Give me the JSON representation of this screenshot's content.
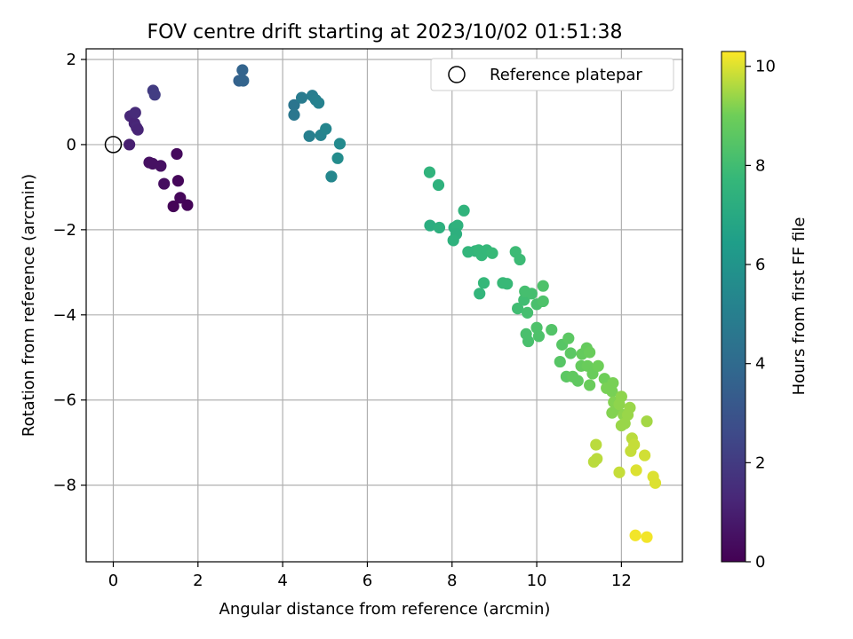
{
  "chart_data": {
    "type": "scatter",
    "title": "FOV centre drift starting at 2023/10/02 01:51:38",
    "xlabel": "Angular distance from reference (arcmin)",
    "ylabel": "Rotation from reference (arcmin)",
    "xlim": [
      -0.64,
      13.44
    ],
    "ylim": [
      -9.8,
      2.25
    ],
    "xticks": [
      0,
      2,
      4,
      6,
      8,
      10,
      12
    ],
    "yticks": [
      2,
      0,
      -2,
      -4,
      -6,
      -8
    ],
    "grid": true,
    "legend": {
      "placement": "upper right",
      "entries": [
        "Reference platepar"
      ]
    },
    "colorbar": {
      "label": "Hours from first FF file",
      "min": 0,
      "max": 10.3,
      "ticks": [
        0,
        2,
        4,
        6,
        8,
        10
      ],
      "colormap": "viridis"
    },
    "reference": {
      "x": 0,
      "y": 0
    },
    "points": [
      {
        "x": 0.38,
        "y": 0.0,
        "h": 1.0
      },
      {
        "x": 0.4,
        "y": 0.67,
        "h": 1.3
      },
      {
        "x": 0.5,
        "y": 0.5,
        "h": 1.2
      },
      {
        "x": 0.52,
        "y": 0.75,
        "h": 1.4
      },
      {
        "x": 0.55,
        "y": 0.4,
        "h": 1.3
      },
      {
        "x": 0.58,
        "y": 0.35,
        "h": 1.2
      },
      {
        "x": 0.94,
        "y": 1.27,
        "h": 2.0
      },
      {
        "x": 0.98,
        "y": 1.17,
        "h": 2.1
      },
      {
        "x": 0.85,
        "y": -0.42,
        "h": 0.5
      },
      {
        "x": 0.93,
        "y": -0.45,
        "h": 0.5
      },
      {
        "x": 1.12,
        "y": -0.5,
        "h": 0.5
      },
      {
        "x": 1.2,
        "y": -0.92,
        "h": 0.4
      },
      {
        "x": 1.5,
        "y": -0.22,
        "h": 0.3
      },
      {
        "x": 1.53,
        "y": -0.85,
        "h": 0.2
      },
      {
        "x": 1.58,
        "y": -1.25,
        "h": 0.2
      },
      {
        "x": 1.42,
        "y": -1.45,
        "h": 0.1
      },
      {
        "x": 1.75,
        "y": -1.42,
        "h": 0.1
      },
      {
        "x": 3.05,
        "y": 1.75,
        "h": 3.7
      },
      {
        "x": 2.97,
        "y": 1.5,
        "h": 3.6
      },
      {
        "x": 3.07,
        "y": 1.5,
        "h": 3.7
      },
      {
        "x": 4.27,
        "y": 0.93,
        "h": 4.5
      },
      {
        "x": 4.27,
        "y": 0.7,
        "h": 4.6
      },
      {
        "x": 4.45,
        "y": 1.1,
        "h": 4.8
      },
      {
        "x": 4.7,
        "y": 1.15,
        "h": 4.9
      },
      {
        "x": 4.78,
        "y": 1.05,
        "h": 5.0
      },
      {
        "x": 4.85,
        "y": 0.98,
        "h": 5.1
      },
      {
        "x": 4.63,
        "y": 0.2,
        "h": 5.0
      },
      {
        "x": 4.9,
        "y": 0.22,
        "h": 5.2
      },
      {
        "x": 5.02,
        "y": 0.37,
        "h": 5.3
      },
      {
        "x": 5.35,
        "y": 0.02,
        "h": 5.5
      },
      {
        "x": 5.3,
        "y": -0.32,
        "h": 5.6
      },
      {
        "x": 5.15,
        "y": -0.75,
        "h": 5.4
      },
      {
        "x": 7.47,
        "y": -0.65,
        "h": 7.5
      },
      {
        "x": 7.68,
        "y": -0.95,
        "h": 7.4
      },
      {
        "x": 7.48,
        "y": -1.9,
        "h": 7.2
      },
      {
        "x": 7.7,
        "y": -1.95,
        "h": 7.3
      },
      {
        "x": 8.05,
        "y": -1.95,
        "h": 7.3
      },
      {
        "x": 8.13,
        "y": -1.9,
        "h": 7.4
      },
      {
        "x": 8.28,
        "y": -1.55,
        "h": 7.5
      },
      {
        "x": 8.1,
        "y": -2.1,
        "h": 7.3
      },
      {
        "x": 8.03,
        "y": -2.25,
        "h": 7.4
      },
      {
        "x": 8.38,
        "y": -2.52,
        "h": 7.6
      },
      {
        "x": 8.55,
        "y": -2.5,
        "h": 7.6
      },
      {
        "x": 8.63,
        "y": -2.48,
        "h": 7.7
      },
      {
        "x": 8.7,
        "y": -2.6,
        "h": 7.7
      },
      {
        "x": 8.82,
        "y": -2.48,
        "h": 7.7
      },
      {
        "x": 8.95,
        "y": -2.55,
        "h": 7.8
      },
      {
        "x": 8.65,
        "y": -3.5,
        "h": 7.6
      },
      {
        "x": 8.75,
        "y": -3.25,
        "h": 7.7
      },
      {
        "x": 9.2,
        "y": -3.25,
        "h": 7.8
      },
      {
        "x": 9.3,
        "y": -3.27,
        "h": 7.8
      },
      {
        "x": 9.5,
        "y": -2.52,
        "h": 7.9
      },
      {
        "x": 9.6,
        "y": -2.7,
        "h": 7.9
      },
      {
        "x": 9.55,
        "y": -3.85,
        "h": 8.0
      },
      {
        "x": 9.7,
        "y": -3.65,
        "h": 8.0
      },
      {
        "x": 9.72,
        "y": -3.45,
        "h": 8.1
      },
      {
        "x": 9.88,
        "y": -3.5,
        "h": 8.1
      },
      {
        "x": 9.78,
        "y": -3.95,
        "h": 8.1
      },
      {
        "x": 9.75,
        "y": -4.45,
        "h": 8.2
      },
      {
        "x": 9.8,
        "y": -4.62,
        "h": 8.2
      },
      {
        "x": 10.0,
        "y": -4.3,
        "h": 8.3
      },
      {
        "x": 10.05,
        "y": -4.5,
        "h": 8.3
      },
      {
        "x": 10.0,
        "y": -3.75,
        "h": 8.2
      },
      {
        "x": 10.15,
        "y": -3.68,
        "h": 8.3
      },
      {
        "x": 10.15,
        "y": -3.32,
        "h": 8.3
      },
      {
        "x": 10.35,
        "y": -4.35,
        "h": 8.4
      },
      {
        "x": 10.55,
        "y": -5.1,
        "h": 8.5
      },
      {
        "x": 10.6,
        "y": -4.7,
        "h": 8.5
      },
      {
        "x": 10.75,
        "y": -4.55,
        "h": 8.6
      },
      {
        "x": 10.8,
        "y": -4.9,
        "h": 8.6
      },
      {
        "x": 10.7,
        "y": -5.45,
        "h": 8.6
      },
      {
        "x": 10.85,
        "y": -5.45,
        "h": 8.7
      },
      {
        "x": 10.97,
        "y": -5.55,
        "h": 8.7
      },
      {
        "x": 11.05,
        "y": -5.2,
        "h": 8.8
      },
      {
        "x": 11.07,
        "y": -4.92,
        "h": 8.8
      },
      {
        "x": 11.18,
        "y": -4.78,
        "h": 8.8
      },
      {
        "x": 11.25,
        "y": -4.88,
        "h": 8.9
      },
      {
        "x": 11.2,
        "y": -5.2,
        "h": 8.9
      },
      {
        "x": 11.25,
        "y": -5.65,
        "h": 8.9
      },
      {
        "x": 11.32,
        "y": -5.38,
        "h": 8.9
      },
      {
        "x": 11.45,
        "y": -5.2,
        "h": 9.0
      },
      {
        "x": 11.6,
        "y": -5.5,
        "h": 9.0
      },
      {
        "x": 11.65,
        "y": -5.72,
        "h": 9.1
      },
      {
        "x": 11.8,
        "y": -5.6,
        "h": 9.1
      },
      {
        "x": 11.78,
        "y": -5.8,
        "h": 9.1
      },
      {
        "x": 11.82,
        "y": -6.05,
        "h": 9.2
      },
      {
        "x": 11.78,
        "y": -6.3,
        "h": 9.2
      },
      {
        "x": 11.9,
        "y": -6.2,
        "h": 9.2
      },
      {
        "x": 11.95,
        "y": -6.1,
        "h": 9.3
      },
      {
        "x": 12.0,
        "y": -5.92,
        "h": 9.3
      },
      {
        "x": 12.05,
        "y": -6.35,
        "h": 9.3
      },
      {
        "x": 12.0,
        "y": -6.6,
        "h": 9.4
      },
      {
        "x": 12.08,
        "y": -6.55,
        "h": 9.4
      },
      {
        "x": 12.2,
        "y": -6.18,
        "h": 9.4
      },
      {
        "x": 12.15,
        "y": -6.35,
        "h": 9.4
      },
      {
        "x": 12.6,
        "y": -6.5,
        "h": 9.5
      },
      {
        "x": 11.4,
        "y": -7.05,
        "h": 9.7
      },
      {
        "x": 11.42,
        "y": -7.38,
        "h": 9.7
      },
      {
        "x": 11.35,
        "y": -7.45,
        "h": 9.7
      },
      {
        "x": 11.95,
        "y": -7.7,
        "h": 9.8
      },
      {
        "x": 12.25,
        "y": -6.9,
        "h": 9.7
      },
      {
        "x": 12.3,
        "y": -7.05,
        "h": 9.8
      },
      {
        "x": 12.22,
        "y": -7.2,
        "h": 9.8
      },
      {
        "x": 12.55,
        "y": -7.3,
        "h": 9.9
      },
      {
        "x": 12.35,
        "y": -7.65,
        "h": 10.0
      },
      {
        "x": 12.75,
        "y": -7.8,
        "h": 10.0
      },
      {
        "x": 12.8,
        "y": -7.95,
        "h": 10.0
      },
      {
        "x": 12.33,
        "y": -9.18,
        "h": 10.2
      },
      {
        "x": 12.6,
        "y": -9.22,
        "h": 10.2
      }
    ]
  }
}
